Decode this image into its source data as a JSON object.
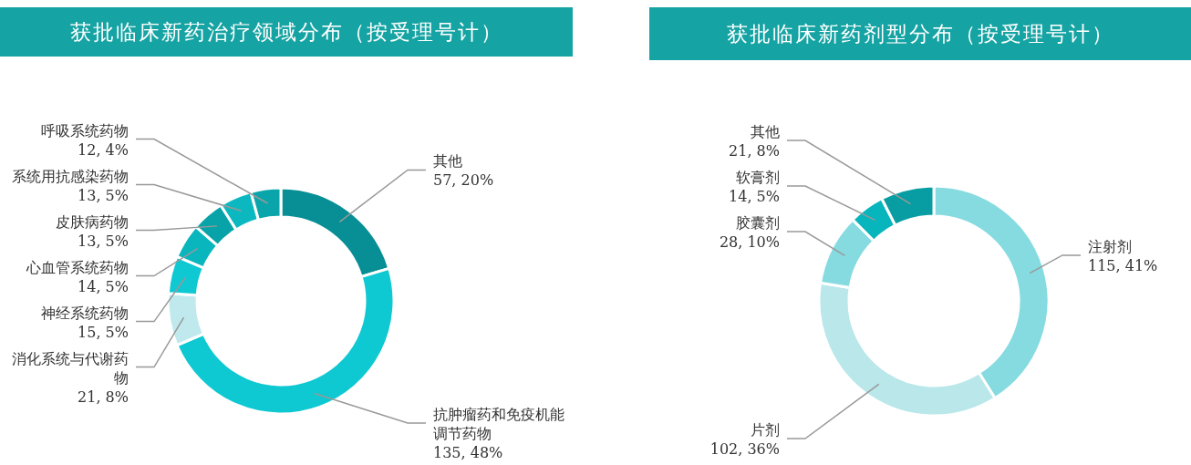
{
  "chart_data": [
    {
      "type": "donut",
      "title": "获批临床新药治疗领域分布（按受理号计）",
      "categories": [
        "其他",
        "抗肿瘤药和免疫机能调节药物",
        "消化系统与代谢药物",
        "神经系统药物",
        "心血管系统药物",
        "皮肤病药物",
        "系统用抗感染药物",
        "呼吸系统药物"
      ],
      "values": [
        57,
        135,
        21,
        15,
        14,
        13,
        13,
        12
      ],
      "value_labels": [
        "57, 20%",
        "135, 48%",
        "21, 8%",
        "15, 5%",
        "14, 5%",
        "13, 5%",
        "13, 5%",
        "12, 4%"
      ],
      "colors": [
        "#078f95",
        "#0ec8d2",
        "#c0e9ed",
        "#0ec8d2",
        "#09b6bd",
        "#07a3a8",
        "#0cb8bf",
        "#0aa5aa"
      ]
    },
    {
      "type": "donut",
      "title": "获批临床新药剂型分布（按受理号计）",
      "categories": [
        "注射剂",
        "片剂",
        "胶囊剂",
        "软膏剂",
        "其他"
      ],
      "values": [
        115,
        102,
        28,
        14,
        21
      ],
      "value_labels": [
        "115, 41%",
        "102, 36%",
        "28, 10%",
        "14, 5%",
        "21, 8%"
      ],
      "colors": [
        "#85dbe0",
        "#b9e7ea",
        "#85dbe0",
        "#07b5bd",
        "#079da3"
      ]
    }
  ]
}
